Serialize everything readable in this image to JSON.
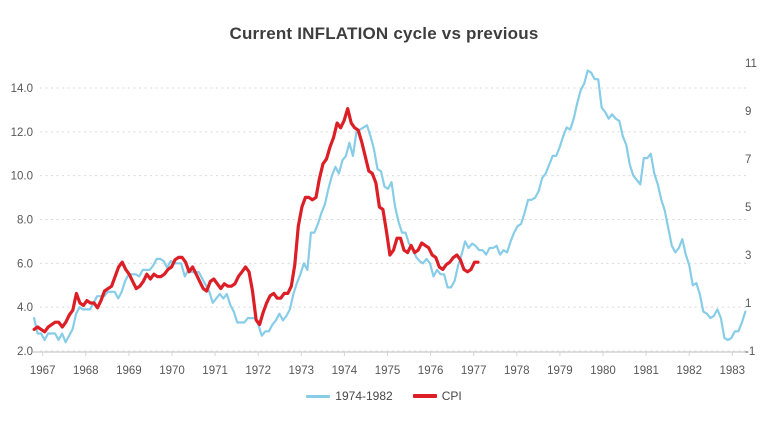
{
  "title": "Current INFLATION cycle vs previous",
  "legend": [
    {
      "label": "1974-1982",
      "color": "#87CDE8"
    },
    {
      "label": "CPI",
      "color": "#DC1F26"
    }
  ],
  "colors": {
    "previous_cycle_line": "#87CDE8",
    "cpi_line": "#DC1F26",
    "gridline": "#d9d9d9",
    "axis_line": "#d4d4d4",
    "tick_label": "#575757"
  },
  "chart_data": {
    "type": "line",
    "title": "Current INFLATION cycle vs previous",
    "grid": "horizontal dashed",
    "legend_position": "bottom center",
    "x_axis": {
      "ticks": [
        1967,
        1968,
        1969,
        1970,
        1971,
        1972,
        1973,
        1974,
        1975,
        1976,
        1977,
        1978,
        1979,
        1980,
        1981,
        1982,
        1983
      ],
      "tick_labels": [
        "1967",
        "1968",
        "1969",
        "1970",
        "1971",
        "1972",
        "1973",
        "1974",
        "1975",
        "1976",
        "1977",
        "1978",
        "1979",
        "1980",
        "1981",
        "1982",
        "1983"
      ]
    },
    "left_axis": {
      "range": [
        2,
        14
      ],
      "tick_values": [
        14,
        12,
        10,
        8,
        6,
        4,
        2
      ],
      "tick_labels": [
        "14.0",
        "12.0",
        "10.0",
        "8.0",
        "6.0",
        "4.0",
        "2.0"
      ]
    },
    "right_axis": {
      "range": [
        -1,
        11
      ],
      "tick_values": [
        11,
        9,
        7,
        5,
        3,
        1,
        -1
      ],
      "tick_labels": [
        "11",
        "9",
        "7",
        "5",
        "3",
        "1",
        "-1"
      ]
    },
    "series": [
      {
        "name": "1974-1982",
        "axis": "left",
        "color": "#87CDE8",
        "stroke_width": 2.2,
        "x_start": 1966.8,
        "x_step": 0.0813,
        "values": [
          3.5,
          2.8,
          2.8,
          2.5,
          2.8,
          2.8,
          2.8,
          2.5,
          2.8,
          2.4,
          2.7,
          3.0,
          3.7,
          4.0,
          3.9,
          3.9,
          3.9,
          4.2,
          4.5,
          4.5,
          4.5,
          4.7,
          4.7,
          4.7,
          4.4,
          4.7,
          5.2,
          5.5,
          5.5,
          5.5,
          5.4,
          5.7,
          5.7,
          5.7,
          5.9,
          6.2,
          6.2,
          6.1,
          5.8,
          6.1,
          6.0,
          6.0,
          6.0,
          5.4,
          5.7,
          5.6,
          5.6,
          5.6,
          5.3,
          5.0,
          4.7,
          4.2,
          4.4,
          4.6,
          4.4,
          4.6,
          4.1,
          3.8,
          3.3,
          3.3,
          3.3,
          3.5,
          3.5,
          3.5,
          3.2,
          2.7,
          2.9,
          2.9,
          3.2,
          3.4,
          3.7,
          3.4,
          3.6,
          3.9,
          4.6,
          5.1,
          5.5,
          6.0,
          5.7,
          7.4,
          7.4,
          7.8,
          8.3,
          8.7,
          9.4,
          10.0,
          10.4,
          10.1,
          10.7,
          10.9,
          11.5,
          10.9,
          12.0,
          12.1,
          12.2,
          12.3,
          11.8,
          11.2,
          10.3,
          10.2,
          9.5,
          9.4,
          9.7,
          8.6,
          7.9,
          7.4,
          7.4,
          6.9,
          6.7,
          6.3,
          6.1,
          6.0,
          6.2,
          6.0,
          5.4,
          5.7,
          5.5,
          5.5,
          4.9,
          4.9,
          5.2,
          5.9,
          6.4,
          7.0,
          6.7,
          6.9,
          6.8,
          6.6,
          6.6,
          6.4,
          6.7,
          6.7,
          6.8,
          6.4,
          6.6,
          6.5,
          7.0,
          7.4,
          7.7,
          7.8,
          8.3,
          8.9,
          8.9,
          9.0,
          9.3,
          9.9,
          10.1,
          10.5,
          10.9,
          10.9,
          11.3,
          11.8,
          12.2,
          12.1,
          12.6,
          13.3,
          13.9,
          14.2,
          14.8,
          14.7,
          14.4,
          14.4,
          13.1,
          12.9,
          12.6,
          12.8,
          12.6,
          12.5,
          11.8,
          11.4,
          10.5,
          10.0,
          9.8,
          9.6,
          10.8,
          10.8,
          11.0,
          10.1,
          9.6,
          8.9,
          8.4,
          7.6,
          6.8,
          6.5,
          6.7,
          7.1,
          6.4,
          5.9,
          5.0,
          5.1,
          4.6,
          3.8,
          3.7,
          3.5,
          3.6,
          3.9,
          3.5,
          2.6,
          2.5,
          2.6,
          2.9,
          2.9,
          3.3,
          3.8
        ]
      },
      {
        "name": "CPI",
        "axis": "right",
        "color": "#DC1F26",
        "stroke_width": 3.2,
        "x_start": 1966.8,
        "x_step": 0.08175,
        "values": [
          -0.1,
          0.0,
          -0.1,
          -0.2,
          0.0,
          0.1,
          0.2,
          0.2,
          0.0,
          0.2,
          0.5,
          0.7,
          1.4,
          1.0,
          0.9,
          1.1,
          1.0,
          1.0,
          0.8,
          1.1,
          1.5,
          1.6,
          1.7,
          2.1,
          2.5,
          2.7,
          2.4,
          2.2,
          1.9,
          1.6,
          1.7,
          1.9,
          2.2,
          2.0,
          2.2,
          2.1,
          2.1,
          2.2,
          2.4,
          2.5,
          2.8,
          2.9,
          2.9,
          2.7,
          2.3,
          2.5,
          2.2,
          1.9,
          1.6,
          1.5,
          1.9,
          2.0,
          1.8,
          1.6,
          1.8,
          1.7,
          1.7,
          1.8,
          2.1,
          2.3,
          2.5,
          2.3,
          1.5,
          0.3,
          0.1,
          0.6,
          1.0,
          1.3,
          1.4,
          1.2,
          1.2,
          1.4,
          1.4,
          1.7,
          2.6,
          4.2,
          5.0,
          5.4,
          5.4,
          5.3,
          5.4,
          6.2,
          6.8,
          7.0,
          7.5,
          7.9,
          8.5,
          8.3,
          8.6,
          9.1,
          8.5,
          8.3,
          8.2,
          7.7,
          7.1,
          6.5,
          6.4,
          6.0,
          5.0,
          4.9,
          4.0,
          3.0,
          3.2,
          3.7,
          3.7,
          3.2,
          3.1,
          3.4,
          3.1,
          3.2,
          3.5,
          3.4,
          3.3,
          3.0,
          2.9,
          2.5,
          2.4,
          2.6,
          2.7,
          2.9,
          3.0,
          2.8,
          2.4,
          2.3,
          2.4,
          2.7,
          2.7
        ]
      }
    ]
  }
}
